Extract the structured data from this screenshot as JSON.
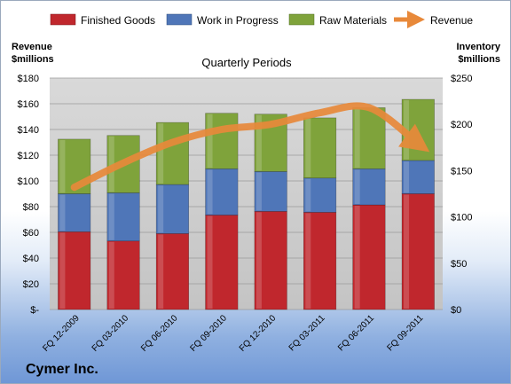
{
  "chart_data": {
    "type": "bar",
    "stacked": true,
    "title": "Quarterly Periods",
    "company": "Cymer Inc.",
    "left_axis_title": [
      "Revenue",
      "$millions"
    ],
    "right_axis_title": [
      "Inventory",
      "$millions"
    ],
    "categories": [
      "FQ 12-2009",
      "FQ 03-2010",
      "FQ 06-2010",
      "FQ 09-2010",
      "FQ 12-2010",
      "FQ 03-2011",
      "FQ 06-2011",
      "FQ 09-2011"
    ],
    "left_ticks": [
      "$-",
      "$20",
      "$40",
      "$60",
      "$80",
      "$100",
      "$120",
      "$140",
      "$160",
      "$180"
    ],
    "right_ticks": [
      "$0",
      "$50",
      "$100",
      "$150",
      "$200",
      "$250"
    ],
    "ylim_left": [
      0,
      180
    ],
    "ylim_right": [
      0,
      250
    ],
    "series": [
      {
        "name": "Finished Goods",
        "axis": "right",
        "color": "#c0272d",
        "values": [
          84,
          74,
          82,
          102,
          106,
          105,
          113,
          125
        ]
      },
      {
        "name": "Work in Progress",
        "axis": "right",
        "color": "#4f76b8",
        "values": [
          41,
          52,
          53,
          50,
          43,
          37,
          39,
          36
        ]
      },
      {
        "name": "Raw Materials",
        "axis": "right",
        "color": "#7fa33b",
        "values": [
          59,
          62,
          67,
          60,
          62,
          65,
          66,
          66
        ]
      }
    ],
    "line_series": {
      "name": "Revenue",
      "axis": "left",
      "color": "#e8893a",
      "values": [
        95,
        114,
        130,
        140,
        144,
        153,
        157,
        129
      ]
    },
    "grid": true,
    "legend": "top"
  }
}
